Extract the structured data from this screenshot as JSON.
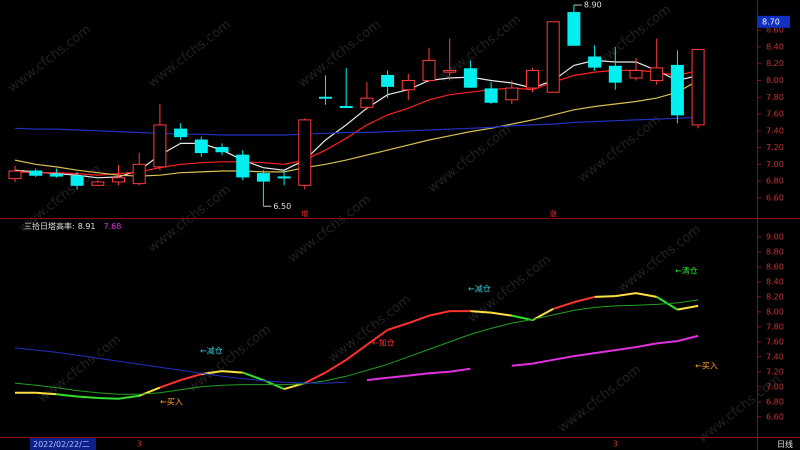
{
  "watermark": "www.cfchs.com",
  "footer": {
    "date": "2022/02/22/二",
    "period": "日线"
  },
  "chart_data": [
    {
      "type": "candlestick",
      "up_color": "#ff3c3c",
      "down_color": "#00f0f0",
      "open": [
        6.83,
        6.92,
        6.88,
        6.86,
        6.75,
        6.79,
        6.77,
        6.97,
        7.42,
        7.29,
        7.2,
        7.11,
        6.89,
        6.85,
        6.75,
        7.8,
        7.69,
        7.68,
        8.06,
        7.89,
        8.0,
        8.1,
        8.14,
        7.9,
        7.77,
        7.91,
        7.86,
        8.81,
        8.28,
        8.17,
        8.03,
        8.0,
        8.18,
        7.47
      ],
      "high": [
        6.98,
        6.95,
        6.95,
        6.91,
        6.81,
        6.99,
        7.14,
        7.72,
        7.49,
        7.33,
        7.25,
        7.17,
        6.93,
        6.92,
        7.55,
        8.06,
        8.15,
        7.98,
        8.12,
        8.08,
        8.39,
        8.5,
        8.24,
        7.98,
        8.0,
        8.15,
        8.7,
        8.9,
        8.42,
        8.4,
        8.27,
        8.5,
        8.36,
        8.37
      ],
      "low": [
        6.79,
        6.85,
        6.84,
        6.7,
        6.74,
        6.75,
        6.75,
        6.93,
        7.29,
        7.09,
        7.11,
        6.81,
        6.5,
        6.75,
        6.7,
        7.71,
        7.67,
        7.65,
        7.79,
        7.77,
        7.98,
        8.0,
        7.91,
        7.72,
        7.72,
        7.86,
        7.86,
        8.42,
        8.12,
        7.89,
        8.0,
        7.95,
        7.49,
        7.43
      ],
      "close": [
        6.92,
        6.87,
        6.86,
        6.75,
        6.79,
        6.84,
        7.0,
        7.47,
        7.33,
        7.14,
        7.15,
        6.85,
        6.8,
        6.84,
        7.53,
        7.79,
        7.68,
        7.79,
        7.93,
        8.0,
        8.24,
        8.12,
        7.92,
        7.74,
        7.91,
        8.12,
        8.7,
        8.42,
        8.16,
        7.98,
        8.12,
        8.15,
        7.59,
        8.37
      ],
      "series": [
        {
          "color": "#e8e8e8",
          "values": [
            6.93,
            6.91,
            6.89,
            6.87,
            6.84,
            6.85,
            6.93,
            7.11,
            7.25,
            7.25,
            7.17,
            7.05,
            6.96,
            6.93,
            7.05,
            7.29,
            7.47,
            7.67,
            7.83,
            7.89,
            8.0,
            8.03,
            8.04,
            8.0,
            7.97,
            7.91,
            8.0,
            8.18,
            8.24,
            8.22,
            8.22,
            8.12,
            8.0,
            8.06
          ]
        },
        {
          "color": "#ff2020",
          "values": [
            6.91,
            6.9,
            6.9,
            6.89,
            6.87,
            6.89,
            6.91,
            6.96,
            7.0,
            7.02,
            7.03,
            7.03,
            7.02,
            7.0,
            7.05,
            7.17,
            7.31,
            7.47,
            7.59,
            7.67,
            7.77,
            7.83,
            7.86,
            7.89,
            7.91,
            7.89,
            7.98,
            8.06,
            8.1,
            8.12,
            8.12,
            8.1,
            8.06,
            8.12
          ]
        },
        {
          "color": "#d8c050",
          "values": [
            7.05,
            7.0,
            6.97,
            6.93,
            6.9,
            6.87,
            6.86,
            6.87,
            6.9,
            6.91,
            6.92,
            6.92,
            6.91,
            6.91,
            6.96,
            7.0,
            7.05,
            7.11,
            7.17,
            7.23,
            7.29,
            7.34,
            7.39,
            7.43,
            7.48,
            7.53,
            7.59,
            7.65,
            7.69,
            7.72,
            7.75,
            7.79,
            7.86,
            8.0
          ]
        },
        {
          "color": "#2030c0",
          "values": [
            7.43,
            7.42,
            7.42,
            7.41,
            7.4,
            7.39,
            7.38,
            7.37,
            7.36,
            7.36,
            7.35,
            7.35,
            7.35,
            7.35,
            7.36,
            7.37,
            7.38,
            7.38,
            7.39,
            7.4,
            7.41,
            7.42,
            7.43,
            7.44,
            7.46,
            7.47,
            7.48,
            7.5,
            7.51,
            7.52,
            7.53,
            7.54,
            7.55,
            7.56
          ]
        }
      ],
      "annotations": [
        {
          "value": 8.9,
          "label": "8.90"
        },
        {
          "value": 6.5,
          "label": "6.50"
        }
      ],
      "markers": [
        "增",
        "涨"
      ],
      "price_tag": {
        "value": 8.7,
        "label": "8.70"
      },
      "ylim": [
        6.36,
        8.96
      ],
      "yticks": [
        {
          "value": 6.6,
          "label": "6.60"
        },
        {
          "value": 6.8,
          "label": "6.80"
        },
        {
          "value": 7.0,
          "label": "7.00"
        },
        {
          "value": 7.2,
          "label": "7.20"
        },
        {
          "value": 7.4,
          "label": "7.40"
        },
        {
          "value": 7.6,
          "label": "7.60"
        },
        {
          "value": 7.8,
          "label": "7.80"
        },
        {
          "value": 8.0,
          "label": "8.00"
        },
        {
          "value": 8.2,
          "label": "8.20"
        },
        {
          "value": 8.4,
          "label": "8.40"
        },
        {
          "value": 8.6,
          "label": "8.60"
        }
      ]
    },
    {
      "type": "line",
      "indicator": "三拾日塔高率:",
      "value_1": 8.91,
      "value_2": 7.68,
      "categories": [
        null,
        null,
        null,
        null,
        null,
        null,
        "3",
        null,
        null,
        null,
        null,
        null,
        null,
        null,
        null,
        null,
        null,
        null,
        null,
        null,
        null,
        null,
        null,
        null,
        null,
        null,
        null,
        null,
        null,
        "3",
        null,
        null,
        null,
        null
      ],
      "series": [
        {
          "values": [
            6.92,
            6.92,
            6.9,
            6.87,
            6.85,
            6.84,
            6.88,
            6.99,
            7.09,
            7.17,
            7.21,
            7.19,
            7.09,
            6.97,
            7.05,
            7.19,
            7.36,
            7.56,
            7.76,
            7.85,
            7.95,
            8.01,
            8.01,
            7.99,
            7.95,
            7.89,
            8.04,
            8.13,
            8.2,
            8.21,
            8.25,
            8.2,
            8.03,
            8.08
          ],
          "segment_colors": [
            "#ffe040",
            "#ffe040",
            "#30e030",
            "#30e030",
            "#30e030",
            "#30e030",
            "#ffe040",
            "#ff3030",
            "#ff3030",
            "#ffe040",
            "#ffe040",
            "#30e030",
            "#30e030",
            "#ffe040",
            "#ff3030",
            "#ff3030",
            "#ff3030",
            "#ff3030",
            "#ff3030",
            "#ff3030",
            "#ff3030",
            "#ff3030",
            "#ffe040",
            "#ffe040",
            "#30e030",
            "#ffe040",
            "#ff3030",
            "#ff3030",
            "#ffe040",
            "#ffe040",
            "#ffe040",
            "#30e030",
            "#ffe040"
          ]
        },
        {
          "color": "#20a020",
          "values": [
            7.05,
            7.02,
            6.99,
            6.95,
            6.92,
            6.9,
            6.9,
            6.92,
            6.96,
            7.0,
            7.02,
            7.03,
            7.03,
            7.03,
            7.04,
            7.08,
            7.14,
            7.22,
            7.3,
            7.4,
            7.5,
            7.6,
            7.7,
            7.78,
            7.85,
            7.9,
            7.96,
            8.02,
            8.06,
            8.08,
            8.09,
            8.1,
            8.12,
            8.16
          ]
        },
        {
          "color": "#2030c0",
          "values": [
            7.52,
            7.49,
            7.46,
            7.42,
            7.38,
            7.34,
            7.3,
            7.26,
            7.22,
            7.18,
            7.14,
            7.11,
            7.08,
            7.06,
            7.05,
            7.05,
            7.06,
            null,
            null,
            null,
            null,
            null,
            null,
            null,
            null,
            null,
            null,
            null,
            null,
            null,
            null,
            null,
            null,
            null
          ]
        },
        {
          "color": "#e030e0",
          "width": 2,
          "values": [
            null,
            null,
            null,
            null,
            null,
            null,
            null,
            null,
            null,
            null,
            null,
            null,
            null,
            null,
            null,
            null,
            null,
            7.09,
            7.12,
            7.15,
            7.18,
            7.2,
            7.24,
            null,
            7.28,
            7.31,
            7.36,
            7.41,
            7.45,
            7.49,
            7.53,
            7.58,
            7.61,
            7.68
          ]
        }
      ],
      "annotations": [
        {
          "text": "←减仓",
          "color": "#30d0e0"
        },
        {
          "text": "←加仓",
          "color": "#ff3030"
        },
        {
          "text": "←减仓",
          "color": "#30d0e0"
        },
        {
          "text": "←清仓",
          "color": "#30e030"
        },
        {
          "text": "←买入",
          "color": "#ffa020"
        },
        {
          "text": "←买入",
          "color": "#ffa020"
        }
      ],
      "ylim": [
        6.33,
        9.2
      ],
      "yticks": [
        {
          "value": 6.6,
          "label": "6.60"
        },
        {
          "value": 6.8,
          "label": "6.80"
        },
        {
          "value": 7.0,
          "label": "7.00"
        },
        {
          "value": 7.2,
          "label": "7.20"
        },
        {
          "value": 7.4,
          "label": "7.40"
        },
        {
          "value": 7.6,
          "label": "7.60"
        },
        {
          "value": 7.8,
          "label": "7.80"
        },
        {
          "value": 8.0,
          "label": "8.00"
        },
        {
          "value": 8.2,
          "label": "8.20"
        },
        {
          "value": 8.4,
          "label": "8.40"
        },
        {
          "value": 8.6,
          "label": "8.60"
        },
        {
          "value": 8.8,
          "label": "8.80"
        },
        {
          "value": 9.0,
          "label": "9.00"
        }
      ]
    }
  ]
}
